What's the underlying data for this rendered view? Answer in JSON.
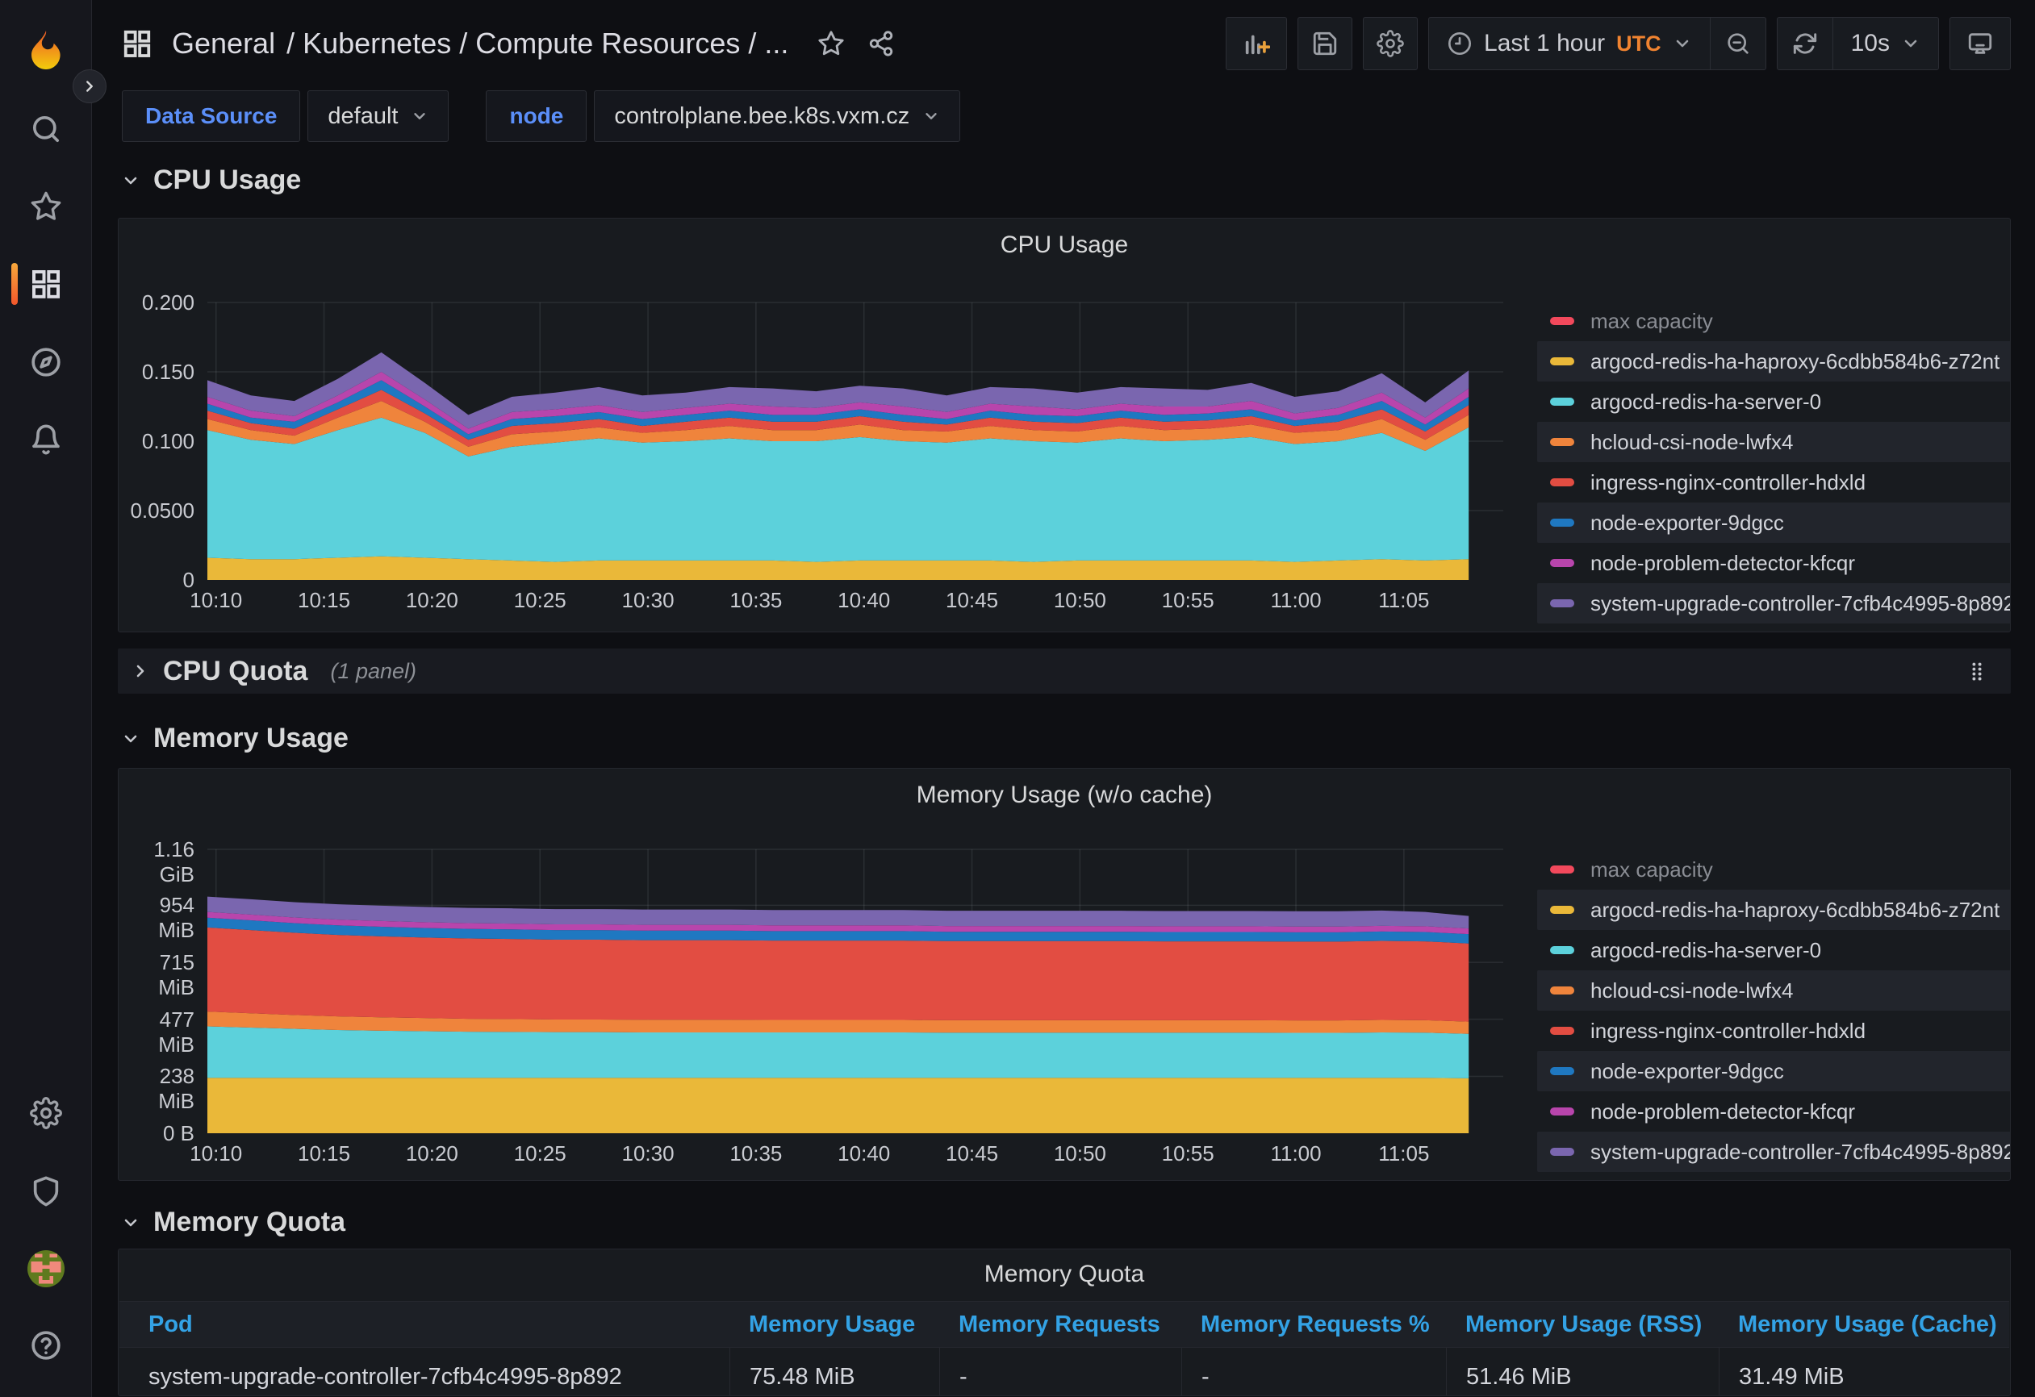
{
  "header": {
    "breadcrumb": {
      "section": "General",
      "rest": "/ Kubernetes / Compute Resources / ..."
    },
    "toolbar": {
      "time_range": "Last 1 hour",
      "timezone": "UTC",
      "refresh_interval": "10s"
    }
  },
  "variables": [
    {
      "label": "Data Source",
      "value": "default"
    },
    {
      "label": "node",
      "value": "controlplane.bee.k8s.vxm.cz"
    }
  ],
  "sections": {
    "cpu_usage": {
      "title": "CPU Usage"
    },
    "cpu_quota": {
      "title": "CPU Quota",
      "panel_count": "(1 panel)"
    },
    "memory_usage": {
      "title": "Memory Usage"
    },
    "memory_quota": {
      "title": "Memory Quota"
    }
  },
  "colors": {
    "accent_blue": "#5b8ff9",
    "table_header_blue": "#33a2e5",
    "timezone_orange": "#f08330",
    "panel_bg": "#181b1f",
    "page_bg": "#0e0f13"
  },
  "chart_data": [
    {
      "type": "area",
      "stacked": true,
      "title": "CPU Usage",
      "unit": "cores",
      "ymax": 0.2,
      "y_ticks": [
        {
          "v": 0,
          "label": "0"
        },
        {
          "v": 0.05,
          "label": "0.0500"
        },
        {
          "v": 0.1,
          "label": "0.100"
        },
        {
          "v": 0.15,
          "label": "0.150"
        },
        {
          "v": 0.2,
          "label": "0.200"
        }
      ],
      "x_domain": [
        9.6,
        69.6
      ],
      "data_end": 68,
      "x_ticks": [
        {
          "m": 10,
          "label": "10:10"
        },
        {
          "m": 15,
          "label": "10:15"
        },
        {
          "m": 20,
          "label": "10:20"
        },
        {
          "m": 25,
          "label": "10:25"
        },
        {
          "m": 30,
          "label": "10:30"
        },
        {
          "m": 35,
          "label": "10:35"
        },
        {
          "m": 40,
          "label": "10:40"
        },
        {
          "m": 45,
          "label": "10:45"
        },
        {
          "m": 50,
          "label": "10:50"
        },
        {
          "m": 55,
          "label": "10:55"
        },
        {
          "m": 60,
          "label": "11:00"
        },
        {
          "m": 65,
          "label": "11:05"
        }
      ],
      "legend_position": "right",
      "series": [
        {
          "name": "max capacity",
          "color": "#F2495C",
          "hidden": true,
          "values": []
        },
        {
          "name": "argocd-redis-ha-haproxy-6cdbb584b6-z72nt",
          "color": "#EAB839",
          "values": [
            0.016,
            0.015,
            0.015,
            0.016,
            0.017,
            0.016,
            0.015,
            0.014,
            0.013,
            0.014,
            0.014,
            0.014,
            0.014,
            0.014,
            0.013,
            0.014,
            0.014,
            0.014,
            0.014,
            0.013,
            0.014,
            0.014,
            0.014,
            0.014,
            0.014,
            0.013,
            0.014,
            0.015,
            0.014,
            0.015
          ]
        },
        {
          "name": "argocd-redis-ha-server-0",
          "color": "#5CD1DB",
          "values": [
            0.092,
            0.086,
            0.083,
            0.092,
            0.1,
            0.09,
            0.074,
            0.082,
            0.086,
            0.088,
            0.085,
            0.086,
            0.088,
            0.086,
            0.087,
            0.089,
            0.086,
            0.085,
            0.088,
            0.087,
            0.085,
            0.088,
            0.086,
            0.087,
            0.089,
            0.085,
            0.086,
            0.091,
            0.079,
            0.095
          ]
        },
        {
          "name": "hcloud-csi-node-lwfx4",
          "color": "#EF843C",
          "values": [
            0.008,
            0.007,
            0.006,
            0.009,
            0.012,
            0.008,
            0.007,
            0.009,
            0.008,
            0.008,
            0.007,
            0.008,
            0.009,
            0.008,
            0.008,
            0.009,
            0.008,
            0.008,
            0.009,
            0.008,
            0.008,
            0.009,
            0.008,
            0.008,
            0.009,
            0.008,
            0.008,
            0.01,
            0.008,
            0.009
          ]
        },
        {
          "name": "ingress-nginx-controller-hdxld",
          "color": "#E24D42",
          "values": [
            0.006,
            0.005,
            0.005,
            0.006,
            0.008,
            0.006,
            0.005,
            0.006,
            0.006,
            0.006,
            0.005,
            0.006,
            0.006,
            0.006,
            0.006,
            0.006,
            0.006,
            0.005,
            0.006,
            0.006,
            0.006,
            0.006,
            0.006,
            0.006,
            0.006,
            0.005,
            0.006,
            0.007,
            0.006,
            0.007
          ]
        },
        {
          "name": "node-exporter-9dgcc",
          "color": "#1F78C1",
          "values": [
            0.005,
            0.004,
            0.005,
            0.005,
            0.007,
            0.005,
            0.004,
            0.005,
            0.005,
            0.005,
            0.005,
            0.005,
            0.005,
            0.005,
            0.005,
            0.005,
            0.005,
            0.004,
            0.005,
            0.005,
            0.005,
            0.005,
            0.005,
            0.005,
            0.005,
            0.004,
            0.005,
            0.006,
            0.005,
            0.006
          ]
        },
        {
          "name": "node-problem-detector-kfcqr",
          "color": "#B845AC",
          "values": [
            0.005,
            0.005,
            0.004,
            0.005,
            0.006,
            0.005,
            0.004,
            0.005,
            0.005,
            0.005,
            0.005,
            0.005,
            0.005,
            0.006,
            0.005,
            0.005,
            0.006,
            0.005,
            0.005,
            0.006,
            0.005,
            0.005,
            0.006,
            0.005,
            0.006,
            0.005,
            0.005,
            0.006,
            0.005,
            0.006
          ]
        },
        {
          "name": "system-upgrade-controller-7cfb4c4995-8p892",
          "color": "#7A66AF",
          "values": [
            0.012,
            0.011,
            0.011,
            0.012,
            0.014,
            0.012,
            0.01,
            0.011,
            0.012,
            0.013,
            0.012,
            0.011,
            0.012,
            0.013,
            0.012,
            0.012,
            0.013,
            0.012,
            0.012,
            0.013,
            0.012,
            0.012,
            0.013,
            0.012,
            0.013,
            0.012,
            0.012,
            0.014,
            0.011,
            0.013
          ]
        }
      ]
    },
    {
      "type": "area",
      "stacked": true,
      "title": "Memory Usage (w/o cache)",
      "unit": "MiB",
      "ymax": 1188,
      "y_ticks": [
        {
          "v": 0,
          "label": "0 B"
        },
        {
          "v": 238,
          "label": "238 MiB"
        },
        {
          "v": 477,
          "label": "477 MiB"
        },
        {
          "v": 715,
          "label": "715 MiB"
        },
        {
          "v": 954,
          "label": "954 MiB"
        },
        {
          "v": 1188,
          "label": "1.16 GiB"
        }
      ],
      "x_domain": [
        9.6,
        69.6
      ],
      "data_end": 68,
      "x_ticks": [
        {
          "m": 10,
          "label": "10:10"
        },
        {
          "m": 15,
          "label": "10:15"
        },
        {
          "m": 20,
          "label": "10:20"
        },
        {
          "m": 25,
          "label": "10:25"
        },
        {
          "m": 30,
          "label": "10:30"
        },
        {
          "m": 35,
          "label": "10:35"
        },
        {
          "m": 40,
          "label": "10:40"
        },
        {
          "m": 45,
          "label": "10:45"
        },
        {
          "m": 50,
          "label": "10:50"
        },
        {
          "m": 55,
          "label": "10:55"
        },
        {
          "m": 60,
          "label": "11:00"
        },
        {
          "m": 65,
          "label": "11:05"
        }
      ],
      "legend_position": "right",
      "series": [
        {
          "name": "max capacity",
          "color": "#F2495C",
          "hidden": true,
          "values": []
        },
        {
          "name": "argocd-redis-ha-haproxy-6cdbb584b6-z72nt",
          "color": "#EAB839",
          "values": [
            232,
            232,
            232,
            232,
            232,
            232,
            232,
            232,
            232,
            232,
            232,
            232,
            232,
            232,
            232,
            232,
            232,
            232,
            232,
            232,
            232,
            232,
            232,
            232,
            232,
            232,
            232,
            232,
            232,
            230
          ]
        },
        {
          "name": "argocd-redis-ha-server-0",
          "color": "#5CD1DB",
          "values": [
            215,
            210,
            205,
            200,
            197,
            195,
            193,
            192,
            191,
            191,
            190,
            190,
            190,
            190,
            190,
            190,
            190,
            189,
            189,
            189,
            189,
            189,
            189,
            189,
            189,
            188,
            188,
            190,
            189,
            186
          ]
        },
        {
          "name": "hcloud-csi-node-lwfx4",
          "color": "#EF843C",
          "values": [
            62,
            60,
            58,
            57,
            56,
            55,
            54,
            54,
            53,
            53,
            53,
            53,
            53,
            52,
            52,
            52,
            52,
            52,
            52,
            52,
            52,
            52,
            52,
            52,
            52,
            52,
            52,
            52,
            52,
            51
          ]
        },
        {
          "name": "ingress-nginx-controller-hdxld",
          "color": "#E24D42",
          "values": [
            352,
            348,
            344,
            341,
            339,
            337,
            336,
            335,
            334,
            334,
            333,
            333,
            333,
            332,
            332,
            332,
            332,
            331,
            331,
            331,
            331,
            331,
            330,
            330,
            330,
            330,
            330,
            331,
            330,
            327
          ]
        },
        {
          "name": "node-exporter-9dgcc",
          "color": "#1F78C1",
          "values": [
            41,
            41,
            40,
            40,
            40,
            40,
            40,
            40,
            40,
            40,
            40,
            40,
            40,
            40,
            40,
            40,
            40,
            39,
            39,
            39,
            39,
            39,
            39,
            39,
            39,
            39,
            39,
            39,
            39,
            39
          ]
        },
        {
          "name": "node-problem-detector-kfcqr",
          "color": "#B845AC",
          "values": [
            24,
            24,
            24,
            24,
            24,
            24,
            24,
            24,
            24,
            24,
            24,
            24,
            24,
            24,
            24,
            24,
            24,
            24,
            24,
            24,
            24,
            24,
            24,
            24,
            24,
            24,
            24,
            24,
            24,
            24
          ]
        },
        {
          "name": "system-upgrade-controller-7cfb4c4995-8p892",
          "color": "#7A66AF",
          "values": [
            64,
            64,
            64,
            64,
            64,
            64,
            64,
            64,
            64,
            64,
            64,
            64,
            64,
            64,
            64,
            64,
            64,
            64,
            64,
            64,
            64,
            64,
            64,
            64,
            64,
            64,
            64,
            64,
            60,
            52
          ]
        }
      ]
    },
    {
      "type": "table",
      "title": "Memory Quota",
      "columns": [
        "Pod",
        "Memory Usage",
        "Memory Requests",
        "Memory Requests %",
        "Memory Usage (RSS)",
        "Memory Usage (Cache)"
      ],
      "rows": [
        [
          "system-upgrade-controller-7cfb4c4995-8p892",
          "75.48 MiB",
          "-",
          "-",
          "51.46 MiB",
          "31.49 MiB"
        ]
      ]
    }
  ]
}
